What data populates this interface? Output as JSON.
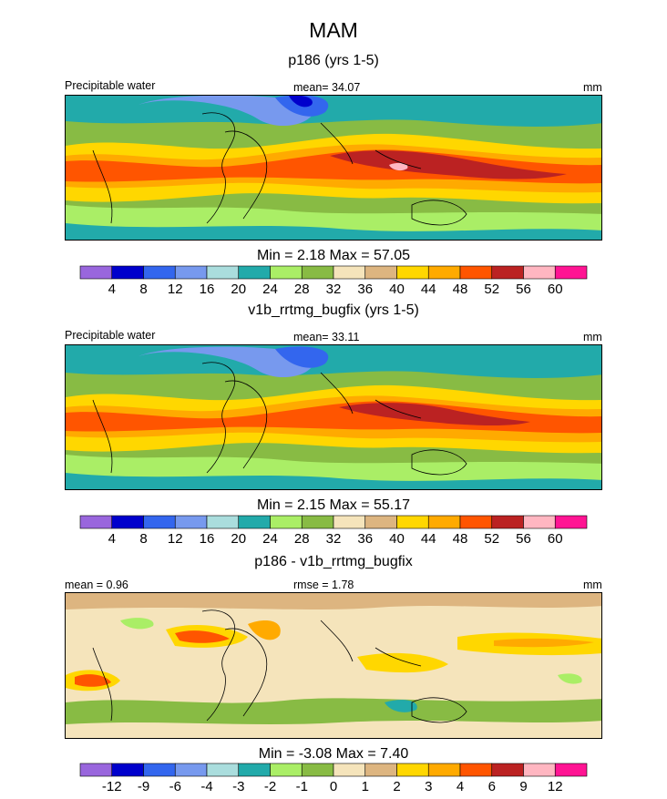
{
  "season": "MAM",
  "panels": [
    {
      "subtitle": "p186 (yrs 1-5)",
      "left_label": "Precipitable water",
      "center_label": "mean=  34.07",
      "right_label": "mm",
      "minmax": "Min =   2.18 Max =  57.05",
      "colorbar": {
        "colors": [
          "#9966dd",
          "#0000cc",
          "#3366ee",
          "#7799ee",
          "#aadddd",
          "#22aaaa",
          "#aaee66",
          "#88bb44",
          "#f5e4bb",
          "#ddb580",
          "#ffd700",
          "#ffaa00",
          "#ff5500",
          "#bb2222",
          "#ffb6c1",
          "#ff1493"
        ],
        "ticks": [
          "4",
          "8",
          "12",
          "16",
          "20",
          "24",
          "28",
          "32",
          "36",
          "40",
          "44",
          "48",
          "52",
          "56",
          "60"
        ]
      }
    },
    {
      "subtitle": "v1b_rrtmg_bugfix (yrs 1-5)",
      "left_label": "Precipitable water",
      "center_label": "mean=  33.11",
      "right_label": "mm",
      "minmax": "Min =   2.15 Max =  55.17",
      "colorbar": {
        "colors": [
          "#9966dd",
          "#0000cc",
          "#3366ee",
          "#7799ee",
          "#aadddd",
          "#22aaaa",
          "#aaee66",
          "#88bb44",
          "#f5e4bb",
          "#ddb580",
          "#ffd700",
          "#ffaa00",
          "#ff5500",
          "#bb2222",
          "#ffb6c1",
          "#ff1493"
        ],
        "ticks": [
          "4",
          "8",
          "12",
          "16",
          "20",
          "24",
          "28",
          "32",
          "36",
          "40",
          "44",
          "48",
          "52",
          "56",
          "60"
        ]
      }
    },
    {
      "subtitle": "p186 - v1b_rrtmg_bugfix",
      "left_label": "mean =   0.96",
      "center_label": "rmse =   1.78",
      "right_label": "mm",
      "minmax": "Min =  -3.08 Max =   7.40",
      "colorbar": {
        "colors": [
          "#9966dd",
          "#0000cc",
          "#3366ee",
          "#7799ee",
          "#aadddd",
          "#22aaaa",
          "#aaee66",
          "#88bb44",
          "#f5e4bb",
          "#ddb580",
          "#ffd700",
          "#ffaa00",
          "#ff5500",
          "#bb2222",
          "#ffb6c1",
          "#ff1493"
        ],
        "ticks": [
          "-12",
          "-9",
          "-6",
          "-4",
          "-3",
          "-2",
          "-1",
          "0",
          "1",
          "2",
          "3",
          "4",
          "6",
          "9",
          "12"
        ]
      }
    }
  ]
}
